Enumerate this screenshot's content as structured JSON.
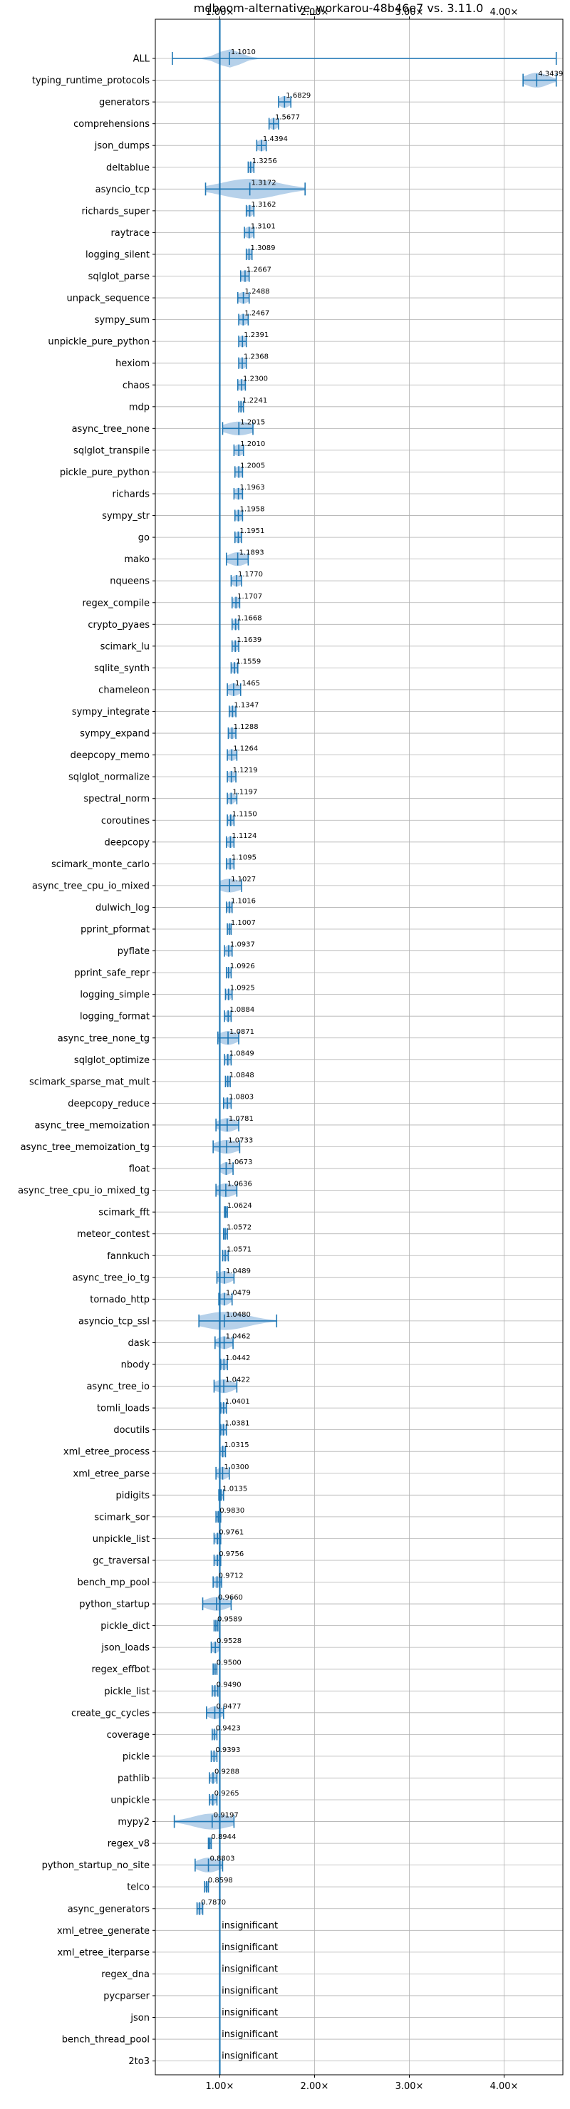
{
  "chart_data": {
    "type": "violin",
    "title": "mdboom-alternative_workarou-48b46e7 vs. 3.11.0",
    "xlabel": "",
    "ylabel": "",
    "xlim": [
      0.32,
      4.62
    ],
    "x_ticks": [
      1,
      2,
      3,
      4
    ],
    "x_tick_labels": [
      "1.00×",
      "2.00×",
      "3.00×",
      "4.00×"
    ],
    "reference_line": 1.0,
    "grid": true,
    "colors": {
      "violin": "#a9c9e6",
      "marker": "#1f77b4",
      "grid": "#b0b0b0",
      "axis": "#000000"
    },
    "rows": [
      {
        "name": "ALL",
        "label": "1.1010",
        "mean": 1.101,
        "lo": 0.5,
        "hi": 4.55,
        "spread": 0.12,
        "height": 0.7
      },
      {
        "name": "typing_runtime_protocols",
        "label": "4.3439",
        "mean": 4.3439,
        "lo": 4.2,
        "hi": 4.55,
        "spread": 0.12,
        "height": 0.55
      },
      {
        "name": "generators",
        "label": "1.6829",
        "mean": 1.6829,
        "lo": 1.62,
        "hi": 1.75,
        "spread": 0.06,
        "height": 0.4
      },
      {
        "name": "comprehensions",
        "label": "1.5677",
        "mean": 1.5677,
        "lo": 1.52,
        "hi": 1.62,
        "spread": 0.05,
        "height": 0.4
      },
      {
        "name": "json_dumps",
        "label": "1.4394",
        "mean": 1.4394,
        "lo": 1.39,
        "hi": 1.49,
        "spread": 0.05,
        "height": 0.4
      },
      {
        "name": "deltablue",
        "label": "1.3256",
        "mean": 1.3256,
        "lo": 1.3,
        "hi": 1.36,
        "spread": 0.03,
        "height": 0.4
      },
      {
        "name": "asyncio_tcp",
        "label": "1.3172",
        "mean": 1.3172,
        "lo": 0.85,
        "hi": 1.9,
        "spread": 0.3,
        "height": 0.8
      },
      {
        "name": "richards_super",
        "label": "1.3162",
        "mean": 1.3162,
        "lo": 1.28,
        "hi": 1.36,
        "spread": 0.04,
        "height": 0.4
      },
      {
        "name": "raytrace",
        "label": "1.3101",
        "mean": 1.3101,
        "lo": 1.26,
        "hi": 1.36,
        "spread": 0.05,
        "height": 0.4
      },
      {
        "name": "logging_silent",
        "label": "1.3089",
        "mean": 1.3089,
        "lo": 1.28,
        "hi": 1.34,
        "spread": 0.03,
        "height": 0.4
      },
      {
        "name": "sqlglot_parse",
        "label": "1.2667",
        "mean": 1.2667,
        "lo": 1.22,
        "hi": 1.31,
        "spread": 0.05,
        "height": 0.4
      },
      {
        "name": "unpack_sequence",
        "label": "1.2488",
        "mean": 1.2488,
        "lo": 1.19,
        "hi": 1.31,
        "spread": 0.06,
        "height": 0.4
      },
      {
        "name": "sympy_sum",
        "label": "1.2467",
        "mean": 1.2467,
        "lo": 1.2,
        "hi": 1.3,
        "spread": 0.05,
        "height": 0.4
      },
      {
        "name": "unpickle_pure_python",
        "label": "1.2391",
        "mean": 1.2391,
        "lo": 1.2,
        "hi": 1.28,
        "spread": 0.04,
        "height": 0.4
      },
      {
        "name": "hexiom",
        "label": "1.2368",
        "mean": 1.2368,
        "lo": 1.2,
        "hi": 1.28,
        "spread": 0.04,
        "height": 0.4
      },
      {
        "name": "chaos",
        "label": "1.2300",
        "mean": 1.23,
        "lo": 1.19,
        "hi": 1.27,
        "spread": 0.04,
        "height": 0.4
      },
      {
        "name": "mdp",
        "label": "1.2241",
        "mean": 1.2241,
        "lo": 1.2,
        "hi": 1.25,
        "spread": 0.02,
        "height": 0.4
      },
      {
        "name": "async_tree_none",
        "label": "1.2015",
        "mean": 1.2015,
        "lo": 1.03,
        "hi": 1.35,
        "spread": 0.15,
        "height": 0.5
      },
      {
        "name": "sqlglot_transpile",
        "label": "1.2010",
        "mean": 1.201,
        "lo": 1.15,
        "hi": 1.25,
        "spread": 0.05,
        "height": 0.4
      },
      {
        "name": "pickle_pure_python",
        "label": "1.2005",
        "mean": 1.2005,
        "lo": 1.16,
        "hi": 1.24,
        "spread": 0.04,
        "height": 0.4
      },
      {
        "name": "richards",
        "label": "1.1963",
        "mean": 1.1963,
        "lo": 1.15,
        "hi": 1.24,
        "spread": 0.05,
        "height": 0.4
      },
      {
        "name": "sympy_str",
        "label": "1.1958",
        "mean": 1.1958,
        "lo": 1.16,
        "hi": 1.24,
        "spread": 0.04,
        "height": 0.4
      },
      {
        "name": "go",
        "label": "1.1951",
        "mean": 1.1951,
        "lo": 1.16,
        "hi": 1.23,
        "spread": 0.04,
        "height": 0.4
      },
      {
        "name": "mako",
        "label": "1.1893",
        "mean": 1.1893,
        "lo": 1.07,
        "hi": 1.3,
        "spread": 0.1,
        "height": 0.5
      },
      {
        "name": "nqueens",
        "label": "1.1770",
        "mean": 1.177,
        "lo": 1.12,
        "hi": 1.23,
        "spread": 0.05,
        "height": 0.4
      },
      {
        "name": "regex_compile",
        "label": "1.1707",
        "mean": 1.1707,
        "lo": 1.13,
        "hi": 1.21,
        "spread": 0.04,
        "height": 0.4
      },
      {
        "name": "crypto_pyaes",
        "label": "1.1668",
        "mean": 1.1668,
        "lo": 1.13,
        "hi": 1.2,
        "spread": 0.03,
        "height": 0.4
      },
      {
        "name": "scimark_lu",
        "label": "1.1639",
        "mean": 1.1639,
        "lo": 1.13,
        "hi": 1.2,
        "spread": 0.03,
        "height": 0.4
      },
      {
        "name": "sqlite_synth",
        "label": "1.1559",
        "mean": 1.1559,
        "lo": 1.12,
        "hi": 1.19,
        "spread": 0.03,
        "height": 0.4
      },
      {
        "name": "chameleon",
        "label": "1.1465",
        "mean": 1.1465,
        "lo": 1.08,
        "hi": 1.22,
        "spread": 0.07,
        "height": 0.45
      },
      {
        "name": "sympy_integrate",
        "label": "1.1347",
        "mean": 1.1347,
        "lo": 1.1,
        "hi": 1.17,
        "spread": 0.04,
        "height": 0.4
      },
      {
        "name": "sympy_expand",
        "label": "1.1288",
        "mean": 1.1288,
        "lo": 1.09,
        "hi": 1.17,
        "spread": 0.04,
        "height": 0.4
      },
      {
        "name": "deepcopy_memo",
        "label": "1.1264",
        "mean": 1.1264,
        "lo": 1.08,
        "hi": 1.18,
        "spread": 0.05,
        "height": 0.4
      },
      {
        "name": "sqlglot_normalize",
        "label": "1.1219",
        "mean": 1.1219,
        "lo": 1.08,
        "hi": 1.17,
        "spread": 0.04,
        "height": 0.4
      },
      {
        "name": "spectral_norm",
        "label": "1.1197",
        "mean": 1.1197,
        "lo": 1.08,
        "hi": 1.18,
        "spread": 0.04,
        "height": 0.4
      },
      {
        "name": "coroutines",
        "label": "1.1150",
        "mean": 1.115,
        "lo": 1.08,
        "hi": 1.15,
        "spread": 0.03,
        "height": 0.4
      },
      {
        "name": "deepcopy",
        "label": "1.1124",
        "mean": 1.1124,
        "lo": 1.07,
        "hi": 1.15,
        "spread": 0.04,
        "height": 0.4
      },
      {
        "name": "scimark_monte_carlo",
        "label": "1.1095",
        "mean": 1.1095,
        "lo": 1.07,
        "hi": 1.15,
        "spread": 0.04,
        "height": 0.4
      },
      {
        "name": "async_tree_cpu_io_mixed",
        "label": "1.1027",
        "mean": 1.1027,
        "lo": 1.0,
        "hi": 1.23,
        "spread": 0.12,
        "height": 0.5
      },
      {
        "name": "dulwich_log",
        "label": "1.1016",
        "mean": 1.1016,
        "lo": 1.07,
        "hi": 1.13,
        "spread": 0.03,
        "height": 0.4
      },
      {
        "name": "pprint_pformat",
        "label": "1.1007",
        "mean": 1.1007,
        "lo": 1.08,
        "hi": 1.12,
        "spread": 0.02,
        "height": 0.4
      },
      {
        "name": "pyflate",
        "label": "1.0937",
        "mean": 1.0937,
        "lo": 1.05,
        "hi": 1.13,
        "spread": 0.04,
        "height": 0.4
      },
      {
        "name": "pprint_safe_repr",
        "label": "1.0926",
        "mean": 1.0926,
        "lo": 1.07,
        "hi": 1.12,
        "spread": 0.02,
        "height": 0.4
      },
      {
        "name": "logging_simple",
        "label": "1.0925",
        "mean": 1.0925,
        "lo": 1.06,
        "hi": 1.13,
        "spread": 0.03,
        "height": 0.4
      },
      {
        "name": "logging_format",
        "label": "1.0884",
        "mean": 1.0884,
        "lo": 1.05,
        "hi": 1.12,
        "spread": 0.03,
        "height": 0.4
      },
      {
        "name": "async_tree_none_tg",
        "label": "1.0871",
        "mean": 1.0871,
        "lo": 0.98,
        "hi": 1.2,
        "spread": 0.1,
        "height": 0.5
      },
      {
        "name": "sqlglot_optimize",
        "label": "1.0849",
        "mean": 1.0849,
        "lo": 1.05,
        "hi": 1.12,
        "spread": 0.03,
        "height": 0.4
      },
      {
        "name": "scimark_sparse_mat_mult",
        "label": "1.0848",
        "mean": 1.0848,
        "lo": 1.06,
        "hi": 1.11,
        "spread": 0.02,
        "height": 0.4
      },
      {
        "name": "deepcopy_reduce",
        "label": "1.0803",
        "mean": 1.0803,
        "lo": 1.04,
        "hi": 1.12,
        "spread": 0.04,
        "height": 0.4
      },
      {
        "name": "async_tree_memoization",
        "label": "1.0781",
        "mean": 1.0781,
        "lo": 0.96,
        "hi": 1.2,
        "spread": 0.1,
        "height": 0.5
      },
      {
        "name": "async_tree_memoization_tg",
        "label": "1.0733",
        "mean": 1.0733,
        "lo": 0.93,
        "hi": 1.21,
        "spread": 0.12,
        "height": 0.5
      },
      {
        "name": "float",
        "label": "1.0673",
        "mean": 1.0673,
        "lo": 1.0,
        "hi": 1.14,
        "spread": 0.06,
        "height": 0.45
      },
      {
        "name": "async_tree_cpu_io_mixed_tg",
        "label": "1.0636",
        "mean": 1.0636,
        "lo": 0.96,
        "hi": 1.18,
        "spread": 0.1,
        "height": 0.5
      },
      {
        "name": "scimark_fft",
        "label": "1.0624",
        "mean": 1.0624,
        "lo": 1.05,
        "hi": 1.08,
        "spread": 0.015,
        "height": 0.4
      },
      {
        "name": "meteor_contest",
        "label": "1.0572",
        "mean": 1.0572,
        "lo": 1.04,
        "hi": 1.08,
        "spread": 0.02,
        "height": 0.4
      },
      {
        "name": "fannkuch",
        "label": "1.0571",
        "mean": 1.0571,
        "lo": 1.03,
        "hi": 1.09,
        "spread": 0.03,
        "height": 0.4
      },
      {
        "name": "async_tree_io_tg",
        "label": "1.0489",
        "mean": 1.0489,
        "lo": 0.97,
        "hi": 1.15,
        "spread": 0.08,
        "height": 0.45
      },
      {
        "name": "tornado_http",
        "label": "1.0479",
        "mean": 1.0479,
        "lo": 0.99,
        "hi": 1.13,
        "spread": 0.06,
        "height": 0.45
      },
      {
        "name": "asyncio_tcp_ssl",
        "label": "1.0480",
        "mean": 1.048,
        "lo": 0.78,
        "hi": 1.6,
        "spread": 0.25,
        "height": 0.7
      },
      {
        "name": "dask",
        "label": "1.0462",
        "mean": 1.0462,
        "lo": 0.95,
        "hi": 1.14,
        "spread": 0.08,
        "height": 0.45
      },
      {
        "name": "nbody",
        "label": "1.0442",
        "mean": 1.0442,
        "lo": 1.01,
        "hi": 1.08,
        "spread": 0.03,
        "height": 0.4
      },
      {
        "name": "async_tree_io",
        "label": "1.0422",
        "mean": 1.0422,
        "lo": 0.94,
        "hi": 1.18,
        "spread": 0.1,
        "height": 0.5
      },
      {
        "name": "tomli_loads",
        "label": "1.0401",
        "mean": 1.0401,
        "lo": 1.01,
        "hi": 1.07,
        "spread": 0.03,
        "height": 0.4
      },
      {
        "name": "docutils",
        "label": "1.0381",
        "mean": 1.0381,
        "lo": 1.01,
        "hi": 1.07,
        "spread": 0.03,
        "height": 0.4
      },
      {
        "name": "xml_etree_process",
        "label": "1.0315",
        "mean": 1.0315,
        "lo": 1.0,
        "hi": 1.06,
        "spread": 0.03,
        "height": 0.4
      },
      {
        "name": "xml_etree_parse",
        "label": "1.0300",
        "mean": 1.03,
        "lo": 0.96,
        "hi": 1.1,
        "spread": 0.06,
        "height": 0.45
      },
      {
        "name": "pidigits",
        "label": "1.0135",
        "mean": 1.0135,
        "lo": 0.99,
        "hi": 1.04,
        "spread": 0.02,
        "height": 0.4
      },
      {
        "name": "scimark_sor",
        "label": "0.9830",
        "mean": 0.983,
        "lo": 0.96,
        "hi": 1.01,
        "spread": 0.02,
        "height": 0.4
      },
      {
        "name": "unpickle_list",
        "label": "0.9761",
        "mean": 0.9761,
        "lo": 0.94,
        "hi": 1.01,
        "spread": 0.03,
        "height": 0.4
      },
      {
        "name": "gc_traversal",
        "label": "0.9756",
        "mean": 0.9756,
        "lo": 0.94,
        "hi": 1.01,
        "spread": 0.03,
        "height": 0.4
      },
      {
        "name": "bench_mp_pool",
        "label": "0.9712",
        "mean": 0.9712,
        "lo": 0.93,
        "hi": 1.02,
        "spread": 0.04,
        "height": 0.4
      },
      {
        "name": "python_startup",
        "label": "0.9660",
        "mean": 0.966,
        "lo": 0.82,
        "hi": 1.12,
        "spread": 0.12,
        "height": 0.5
      },
      {
        "name": "pickle_dict",
        "label": "0.9589",
        "mean": 0.9589,
        "lo": 0.94,
        "hi": 0.98,
        "spread": 0.02,
        "height": 0.4
      },
      {
        "name": "json_loads",
        "label": "0.9528",
        "mean": 0.9528,
        "lo": 0.91,
        "hi": 1.0,
        "spread": 0.04,
        "height": 0.4
      },
      {
        "name": "regex_effbot",
        "label": "0.9500",
        "mean": 0.95,
        "lo": 0.93,
        "hi": 0.97,
        "spread": 0.015,
        "height": 0.4
      },
      {
        "name": "pickle_list",
        "label": "0.9490",
        "mean": 0.949,
        "lo": 0.92,
        "hi": 0.98,
        "spread": 0.03,
        "height": 0.4
      },
      {
        "name": "create_gc_cycles",
        "label": "0.9477",
        "mean": 0.9477,
        "lo": 0.86,
        "hi": 1.04,
        "spread": 0.08,
        "height": 0.45
      },
      {
        "name": "coverage",
        "label": "0.9423",
        "mean": 0.9423,
        "lo": 0.92,
        "hi": 0.97,
        "spread": 0.02,
        "height": 0.4
      },
      {
        "name": "pickle",
        "label": "0.9393",
        "mean": 0.9393,
        "lo": 0.91,
        "hi": 0.97,
        "spread": 0.02,
        "height": 0.4
      },
      {
        "name": "pathlib",
        "label": "0.9288",
        "mean": 0.9288,
        "lo": 0.89,
        "hi": 0.97,
        "spread": 0.03,
        "height": 0.4
      },
      {
        "name": "unpickle",
        "label": "0.9265",
        "mean": 0.9265,
        "lo": 0.89,
        "hi": 0.97,
        "spread": 0.03,
        "height": 0.4
      },
      {
        "name": "mypy2",
        "label": "0.9197",
        "mean": 0.9197,
        "lo": 0.52,
        "hi": 1.15,
        "spread": 0.2,
        "height": 0.6
      },
      {
        "name": "regex_v8",
        "label": "0.8944",
        "mean": 0.8944,
        "lo": 0.88,
        "hi": 0.91,
        "spread": 0.015,
        "height": 0.4
      },
      {
        "name": "python_startup_no_site",
        "label": "0.8803",
        "mean": 0.8803,
        "lo": 0.74,
        "hi": 1.03,
        "spread": 0.12,
        "height": 0.55
      },
      {
        "name": "telco",
        "label": "0.8598",
        "mean": 0.8598,
        "lo": 0.84,
        "hi": 0.88,
        "spread": 0.015,
        "height": 0.4
      },
      {
        "name": "async_generators",
        "label": "0.7870",
        "mean": 0.787,
        "lo": 0.76,
        "hi": 0.82,
        "spread": 0.03,
        "height": 0.45
      },
      {
        "name": "xml_etree_generate",
        "label": "insignificant",
        "mean": null
      },
      {
        "name": "xml_etree_iterparse",
        "label": "insignificant",
        "mean": null
      },
      {
        "name": "regex_dna",
        "label": "insignificant",
        "mean": null
      },
      {
        "name": "pycparser",
        "label": "insignificant",
        "mean": null
      },
      {
        "name": "json",
        "label": "insignificant",
        "mean": null
      },
      {
        "name": "bench_thread_pool",
        "label": "insignificant",
        "mean": null
      },
      {
        "name": "2to3",
        "label": "insignificant",
        "mean": null
      }
    ]
  }
}
